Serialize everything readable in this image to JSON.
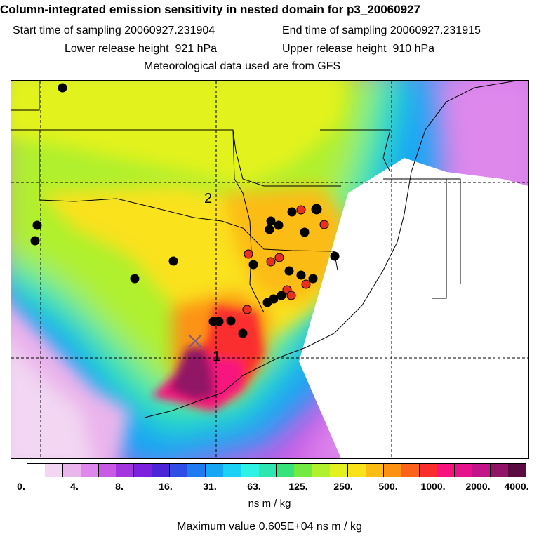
{
  "title": "Column-integrated emission sensitivity in nested domain for p3_20060927",
  "header": {
    "start_label": "Start time of sampling",
    "start_value": "20060927.231904",
    "end_label": "End time of sampling",
    "end_value": "20060927.231915",
    "lower_label": "Lower release height",
    "lower_value": "921 hPa",
    "upper_label": "Upper release height",
    "upper_value": "910 hPa",
    "met_line": "Meteorological data used are from GFS"
  },
  "map": {
    "labels": [
      "2",
      "1"
    ],
    "release_marker": "x-marker-icon",
    "point_colors": {
      "black": "#000000",
      "red": "#e8301e"
    }
  },
  "colorbar": {
    "tick_labels": [
      "0.",
      "4.",
      "8.",
      "16.",
      "31.",
      "63.",
      "125.",
      "250.",
      "500.",
      "1000.",
      "2000.",
      "4000."
    ],
    "colors": [
      "#ffffff",
      "#f2d6f2",
      "#eab4ec",
      "#de88ec",
      "#c85ae6",
      "#a436e0",
      "#7a22dc",
      "#4a26d8",
      "#2e4ee6",
      "#1f7cf0",
      "#17a6f4",
      "#19d2f6",
      "#2ef2e4",
      "#2ee6b0",
      "#36e27a",
      "#72ea42",
      "#b0f02e",
      "#e2f21e",
      "#fae21a",
      "#fcbc16",
      "#fc9214",
      "#fc6218",
      "#fa2e2e",
      "#f8147e",
      "#e6148c",
      "#c4148a",
      "#921466",
      "#5a0c40"
    ],
    "units": "ns m / kg"
  },
  "max_value_line": "Maximum value  0.605E+04 ns m / kg"
}
